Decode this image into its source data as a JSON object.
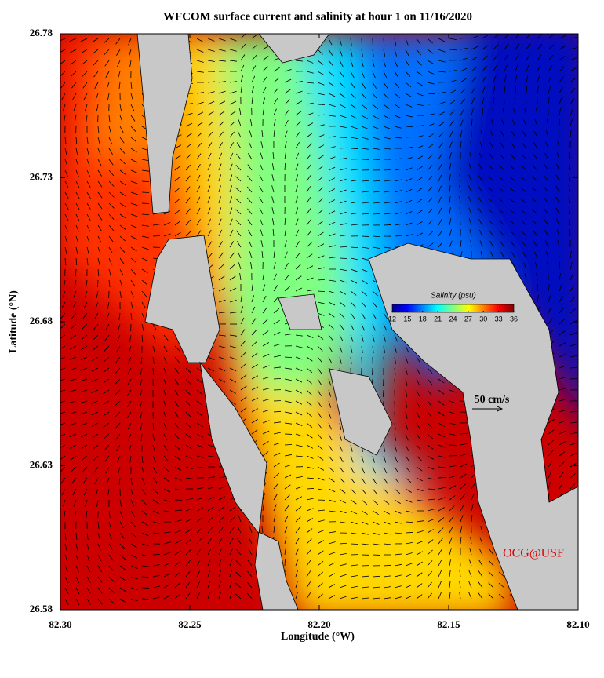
{
  "map": {
    "title": "WFCOM surface current and salinity at hour 1 on 11/16/2020",
    "xlabel": "Longitude (°W)",
    "ylabel": "Latitude (°N)",
    "xlim": [
      82.3,
      82.1
    ],
    "xticks": [
      {
        "value": 82.3,
        "label": "82.30"
      },
      {
        "value": 82.25,
        "label": "82.25"
      },
      {
        "value": 82.2,
        "label": "82.20"
      },
      {
        "value": 82.15,
        "label": "82.15"
      },
      {
        "value": 82.1,
        "label": "82.10"
      }
    ],
    "ylim": [
      26.58,
      26.78
    ],
    "yticks": [
      26.58,
      26.63,
      26.68,
      26.73,
      26.78
    ],
    "colorbar": {
      "title": "Salinity (psu)",
      "lim": [
        12,
        36
      ],
      "ticks": [
        12,
        15,
        18,
        21,
        24,
        27,
        30,
        33,
        36
      ]
    },
    "scale_label": "50 cm/s",
    "credit": "OCG@USF"
  }
}
